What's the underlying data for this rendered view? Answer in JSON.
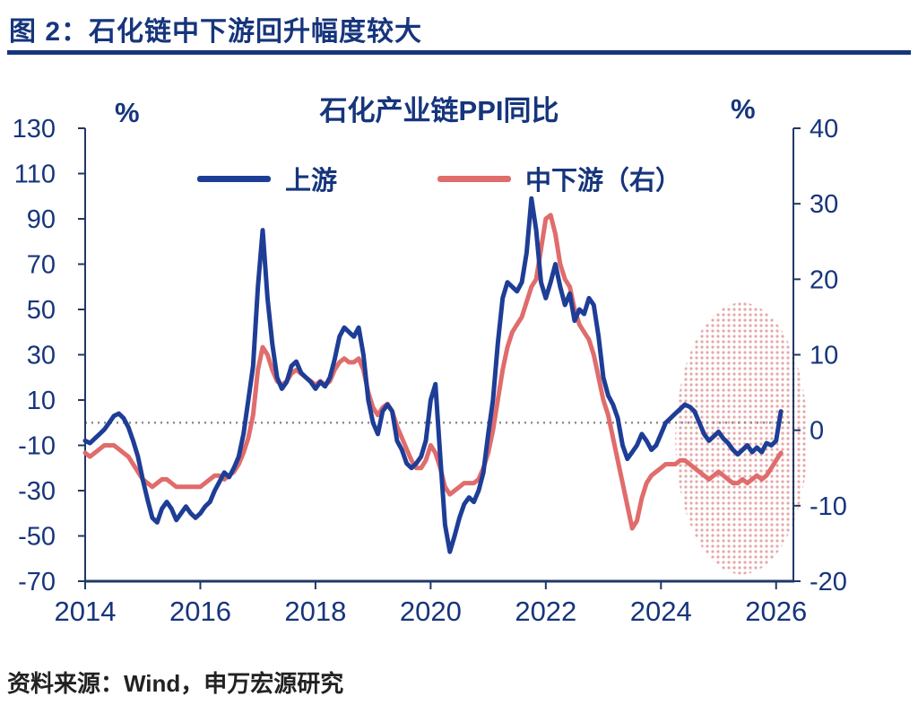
{
  "page": {
    "figure_title": "图 2：石化链中下游回升幅度较大",
    "source_note": "资料来源：Wind，申万宏源研究"
  },
  "colors": {
    "navy": "#16357c",
    "axis": "#203864",
    "grid": "#8c8c8c",
    "upstream_line": "#1e3d96",
    "downstream_line": "#e06c6c",
    "highlight_dots": "#e6a9a9"
  },
  "chart_data": {
    "type": "line",
    "title": "石化产业链PPI同比",
    "legend_position": "top-center",
    "left_axis": {
      "unit": "%",
      "min": -70,
      "max": 130,
      "ticks": [
        130,
        110,
        90,
        70,
        50,
        30,
        10,
        -10,
        -30,
        -50,
        -70
      ]
    },
    "right_axis": {
      "unit": "%",
      "min": -20,
      "max": 40,
      "ticks": [
        40,
        30,
        20,
        10,
        0,
        -10,
        -20
      ]
    },
    "x_axis": {
      "min": 2014,
      "max": 2026.3,
      "tick_years": [
        2014,
        2016,
        2018,
        2020,
        2022,
        2024,
        2026
      ]
    },
    "zero_line": {
      "left_value": 0,
      "style": "dotted"
    },
    "highlight_ellipse": {
      "center_year": 2025.4,
      "center_left_value": -7,
      "radius_years": 1.15,
      "radius_left_value": 60
    },
    "series": [
      {
        "name": "上游",
        "axis": "left",
        "color": "#1e3d96",
        "start_year": 2014,
        "interval_months": 1,
        "values": [
          -8,
          -9,
          -7,
          -5,
          -3,
          0,
          3,
          4,
          2,
          -2,
          -8,
          -15,
          -25,
          -34,
          -42,
          -44,
          -38,
          -35,
          -38,
          -43,
          -40,
          -37,
          -40,
          -42,
          -40,
          -37,
          -35,
          -30,
          -26,
          -22,
          -24,
          -20,
          -15,
          -5,
          10,
          25,
          60,
          85,
          55,
          35,
          20,
          15,
          18,
          25,
          27,
          22,
          20,
          18,
          15,
          18,
          16,
          20,
          28,
          38,
          42,
          40,
          38,
          42,
          30,
          10,
          0,
          -5,
          5,
          8,
          5,
          -8,
          -12,
          -18,
          -20,
          -18,
          -15,
          -8,
          10,
          17,
          -15,
          -45,
          -57,
          -50,
          -42,
          -36,
          -33,
          -35,
          -30,
          -22,
          -5,
          10,
          35,
          55,
          62,
          60,
          58,
          62,
          75,
          99,
          85,
          62,
          55,
          62,
          70,
          60,
          52,
          57,
          45,
          50,
          48,
          55,
          52,
          38,
          20,
          12,
          8,
          2,
          -10,
          -16,
          -13,
          -10,
          -5,
          -8,
          -12,
          -10,
          -5,
          0,
          2,
          4,
          6,
          8,
          7,
          5,
          0,
          -5,
          -8,
          -6,
          -4,
          -7,
          -9,
          -12,
          -14,
          -12,
          -10,
          -13,
          -11,
          -13,
          -9,
          -10,
          -8,
          5
        ]
      },
      {
        "name": "中下游（右）",
        "axis": "right",
        "color": "#e06c6c",
        "start_year": 2014,
        "interval_months": 1,
        "values": [
          -3,
          -3.5,
          -3,
          -2.5,
          -2,
          -2,
          -2,
          -2.5,
          -3,
          -3.5,
          -4.5,
          -5.5,
          -6.5,
          -7,
          -7.5,
          -7,
          -6.5,
          -6.5,
          -7,
          -7.5,
          -7.5,
          -7.5,
          -7.5,
          -7.5,
          -7.5,
          -7,
          -6.5,
          -6,
          -6,
          -6.5,
          -6,
          -5.5,
          -4.5,
          -3,
          -1,
          2,
          8,
          11,
          10,
          8,
          6.5,
          6,
          6.5,
          7.5,
          8,
          7.5,
          7,
          6.5,
          6,
          6.5,
          6,
          6.5,
          8,
          9,
          9.5,
          9,
          9,
          9.5,
          8,
          5,
          3,
          2,
          3,
          3.5,
          2.5,
          0.5,
          -1,
          -2.5,
          -4,
          -5,
          -5,
          -4,
          -2,
          -3,
          -5,
          -7.5,
          -8.5,
          -8,
          -7.5,
          -7,
          -7,
          -7,
          -6.5,
          -5,
          -3,
          0,
          4,
          8,
          11,
          13,
          14,
          15,
          17,
          19,
          20,
          24,
          28,
          28.5,
          26,
          22,
          20,
          19,
          16,
          14,
          13,
          12,
          10,
          7,
          4,
          2,
          -1,
          -4,
          -7,
          -10,
          -13,
          -12,
          -9,
          -7,
          -6,
          -5.5,
          -5,
          -4.5,
          -4.5,
          -4.5,
          -4,
          -4,
          -4.5,
          -5,
          -5.5,
          -6,
          -6.5,
          -6,
          -5.5,
          -6,
          -6.5,
          -7,
          -7,
          -6.5,
          -7,
          -6.5,
          -6,
          -6.5,
          -6,
          -5,
          -4,
          -3
        ]
      }
    ]
  }
}
